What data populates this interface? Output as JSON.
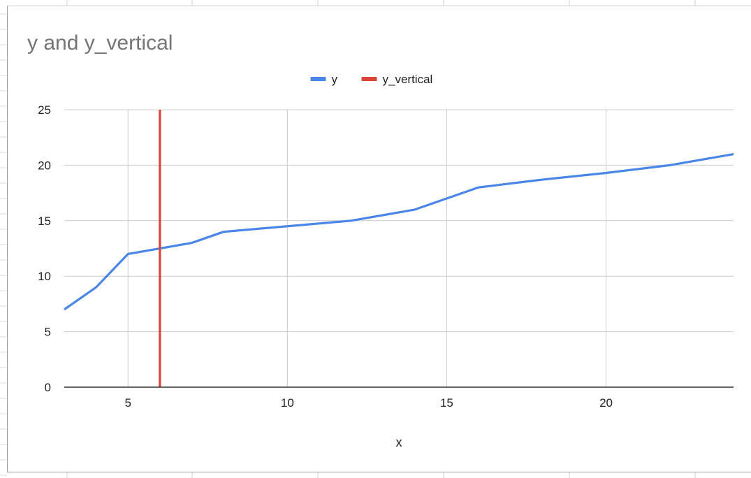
{
  "chart_data": {
    "type": "line",
    "title": "y and y_vertical",
    "xlabel": "x",
    "ylabel": "",
    "xlim": [
      3,
      24
    ],
    "ylim": [
      0,
      25
    ],
    "x_ticks": [
      5,
      10,
      15,
      20
    ],
    "y_ticks": [
      0,
      5,
      10,
      15,
      20,
      25
    ],
    "grid": true,
    "legend_position": "top",
    "series": [
      {
        "name": "y",
        "color": "#4a86e8",
        "x": [
          3,
          4,
          5,
          7,
          8,
          10,
          12,
          14,
          16,
          18,
          20,
          22,
          24
        ],
        "y": [
          7,
          9,
          12,
          13,
          14,
          14.5,
          15,
          16,
          18,
          18.7,
          19.3,
          20,
          21
        ]
      },
      {
        "name": "y_vertical",
        "color": "#db4437",
        "x": [
          6,
          6
        ],
        "y": [
          0,
          25
        ]
      }
    ]
  }
}
